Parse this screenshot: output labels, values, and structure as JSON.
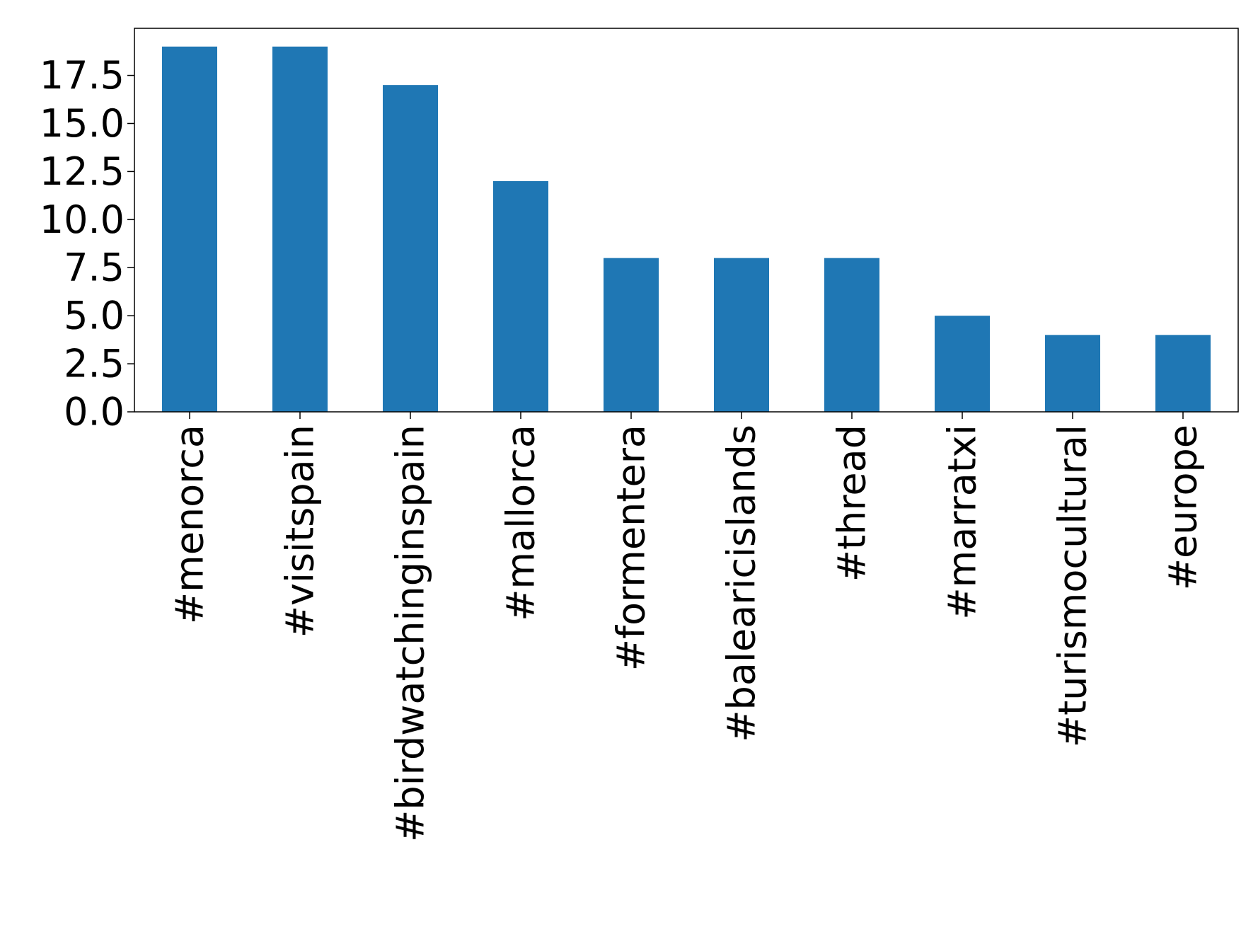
{
  "chart_data": {
    "type": "bar",
    "title": "",
    "xlabel": "",
    "ylabel": "",
    "categories": [
      "#menorca",
      "#visitspain",
      "#birdwatchinginspain",
      "#mallorca",
      "#formentera",
      "#balearicislands",
      "#thread",
      "#marratxi",
      "#turismocultural",
      "#europe"
    ],
    "values": [
      19,
      19,
      17,
      12,
      8,
      8,
      8,
      5,
      4,
      4
    ],
    "ylim": [
      0,
      19.95
    ],
    "yticks": [
      0.0,
      2.5,
      5.0,
      7.5,
      10.0,
      12.5,
      15.0,
      17.5
    ],
    "ytick_labels": [
      "0.0",
      "2.5",
      "5.0",
      "7.5",
      "10.0",
      "12.5",
      "15.0",
      "17.5"
    ],
    "bar_color": "#1f77b4",
    "grid": false,
    "legend": "none"
  }
}
